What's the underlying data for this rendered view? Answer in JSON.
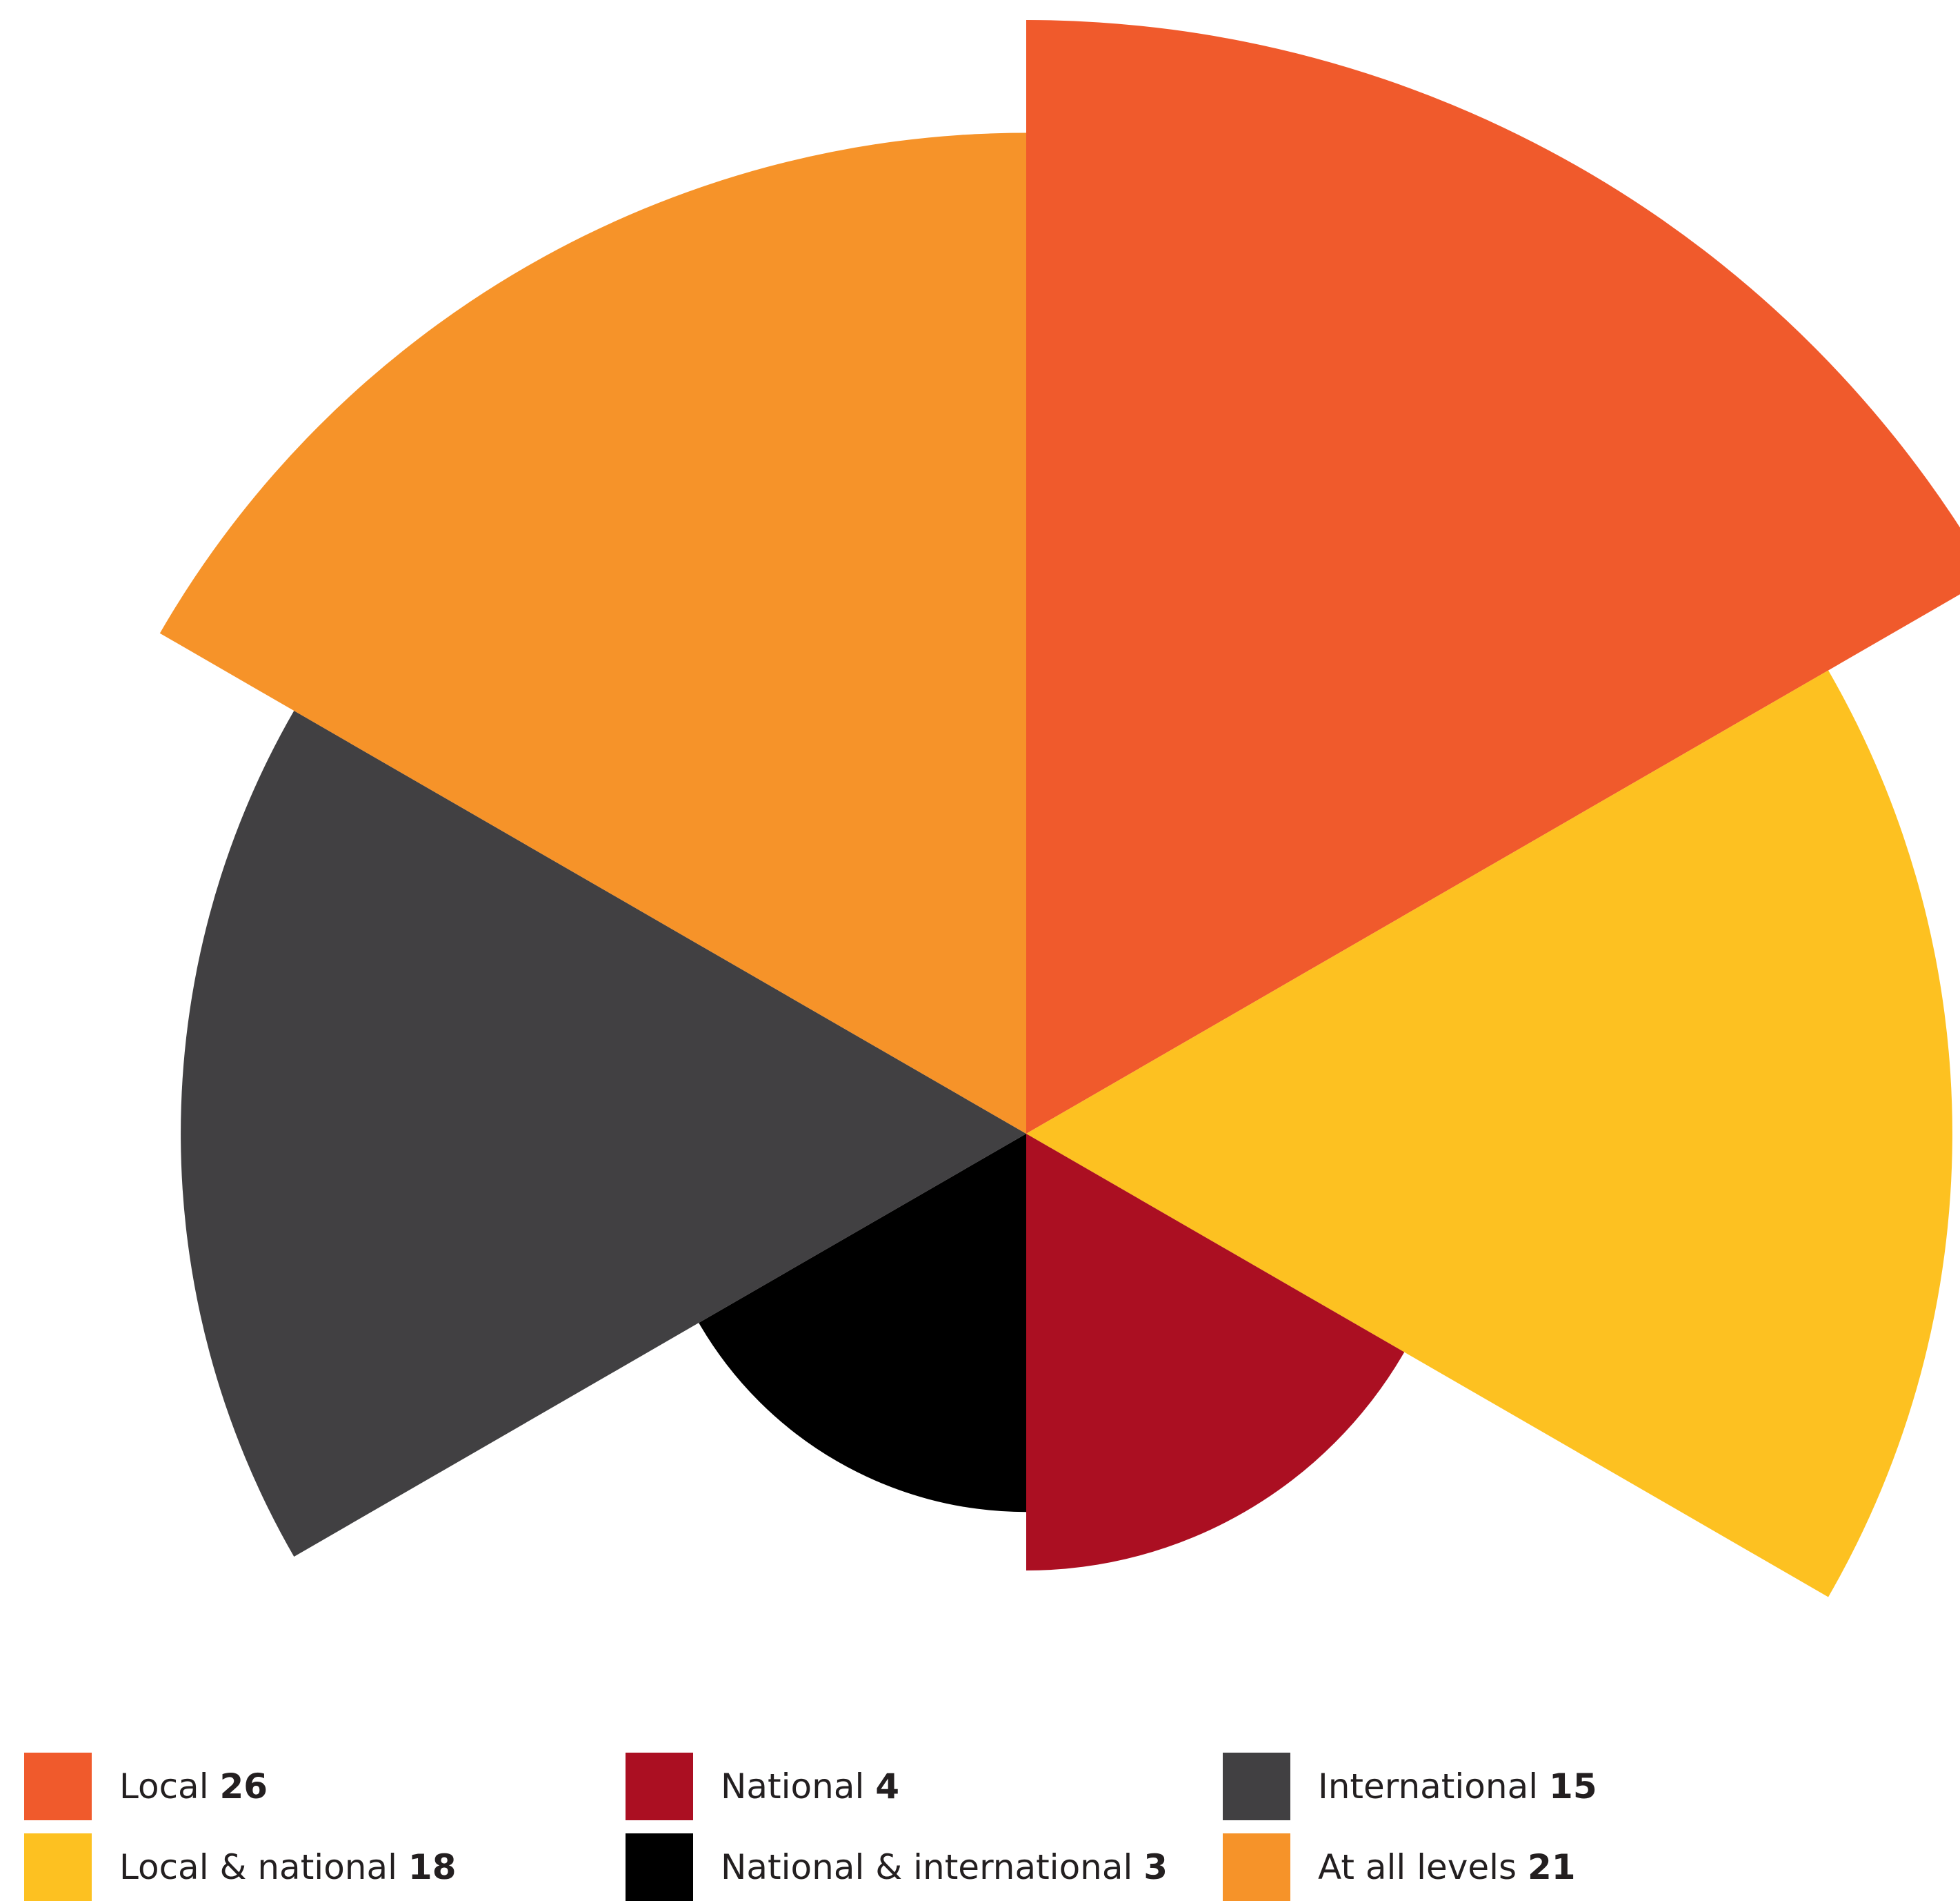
{
  "chart_data": {
    "type": "polar-area",
    "categories": [
      "Local",
      "Local & national",
      "National",
      "National & international",
      "International",
      "At all levels"
    ],
    "values": [
      26,
      18,
      4,
      3,
      15,
      21
    ],
    "colors": [
      "#f05a2c",
      "#fdc121",
      "#ab0f22",
      "#000000",
      "#414042",
      "#f69329"
    ],
    "start_angle_deg": 0,
    "direction": "clockwise",
    "legend": {
      "placement": "bottom",
      "columns": 3,
      "items": [
        {
          "label": "Local",
          "value": "26",
          "color": "#f05a2c"
        },
        {
          "label": "National",
          "value": "4",
          "color": "#ab0f22"
        },
        {
          "label": "International",
          "value": "15",
          "color": "#414042"
        },
        {
          "label": "Local & national",
          "value": "18",
          "color": "#fdc121"
        },
        {
          "label": "National & international",
          "value": "3",
          "color": "#000000"
        },
        {
          "label": "At all levels",
          "value": "21",
          "color": "#f69329"
        }
      ]
    }
  }
}
